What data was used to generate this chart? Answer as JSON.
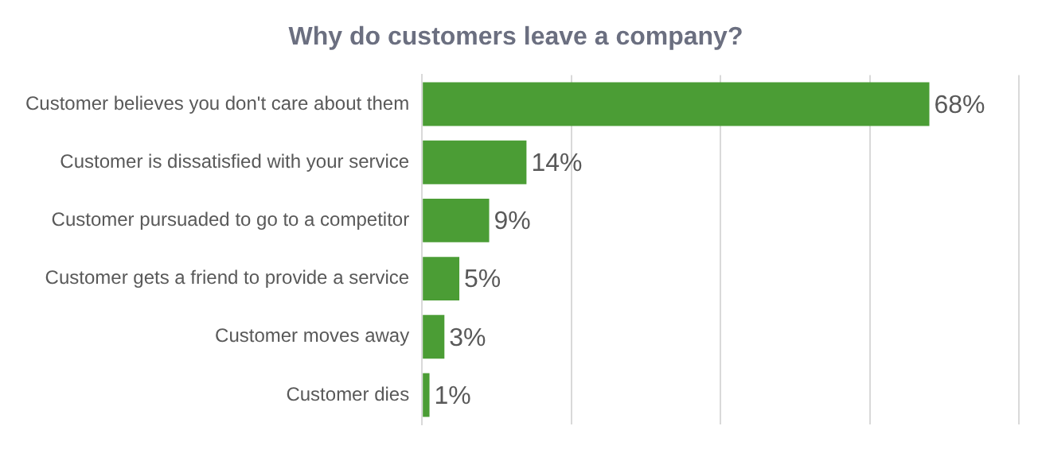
{
  "chart_data": {
    "type": "bar",
    "orientation": "horizontal",
    "title": "Why do customers leave a company?",
    "categories": [
      "Customer believes you don't care about them",
      "Customer is dissatisfied with your service",
      "Customer pursuaded to go to a competitor",
      "Customer gets a friend to provide a service",
      "Customer moves away",
      "Customer dies"
    ],
    "values": [
      68,
      14,
      9,
      5,
      3,
      1
    ],
    "color": "#4b9d35",
    "value_labels": [
      "68%",
      "14%",
      "9%",
      "5%",
      "3%",
      "1%"
    ],
    "xlim": [
      0,
      80
    ],
    "xticks": [
      {
        "value": 0,
        "label": null
      },
      {
        "value": 20,
        "label": null
      },
      {
        "value": 40,
        "label": null
      },
      {
        "value": 60,
        "label": null
      },
      {
        "value": 80,
        "label": null
      }
    ],
    "grid": "x",
    "tick_labels": "y"
  }
}
